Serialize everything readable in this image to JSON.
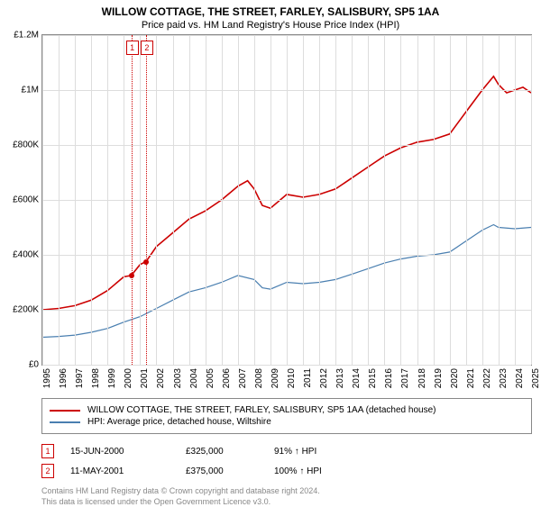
{
  "title": "WILLOW COTTAGE, THE STREET, FARLEY, SALISBURY, SP5 1AA",
  "subtitle": "Price paid vs. HM Land Registry's House Price Index (HPI)",
  "chart": {
    "type": "line",
    "background_color": "#ffffff",
    "grid_color": "#dddddd",
    "border_color": "#888888",
    "x": {
      "min": 1995,
      "max": 2025,
      "ticks": [
        1995,
        1996,
        1997,
        1998,
        1999,
        2000,
        2001,
        2002,
        2003,
        2004,
        2005,
        2006,
        2007,
        2008,
        2009,
        2010,
        2011,
        2012,
        2013,
        2014,
        2015,
        2016,
        2017,
        2018,
        2019,
        2020,
        2021,
        2022,
        2023,
        2024,
        2025
      ]
    },
    "y": {
      "min": 0,
      "max": 1200000,
      "ticks": [
        0,
        200000,
        400000,
        600000,
        800000,
        1000000,
        1200000
      ],
      "tick_labels": [
        "£0",
        "£200K",
        "£400K",
        "£600K",
        "£800K",
        "£1M",
        "£1.2M"
      ]
    },
    "series": [
      {
        "id": "willow",
        "label": "WILLOW COTTAGE, THE STREET, FARLEY, SALISBURY, SP5 1AA (detached house)",
        "color": "#cc0000",
        "width": 1.6,
        "points": [
          [
            1995,
            200000
          ],
          [
            1996,
            205000
          ],
          [
            1997,
            215000
          ],
          [
            1998,
            235000
          ],
          [
            1999,
            270000
          ],
          [
            2000,
            320000
          ],
          [
            2000.46,
            325000
          ],
          [
            2001,
            365000
          ],
          [
            2001.36,
            375000
          ],
          [
            2002,
            430000
          ],
          [
            2003,
            480000
          ],
          [
            2004,
            530000
          ],
          [
            2005,
            560000
          ],
          [
            2006,
            600000
          ],
          [
            2007,
            650000
          ],
          [
            2007.6,
            670000
          ],
          [
            2008,
            640000
          ],
          [
            2008.5,
            580000
          ],
          [
            2009,
            570000
          ],
          [
            2010,
            620000
          ],
          [
            2011,
            610000
          ],
          [
            2012,
            620000
          ],
          [
            2013,
            640000
          ],
          [
            2014,
            680000
          ],
          [
            2015,
            720000
          ],
          [
            2016,
            760000
          ],
          [
            2017,
            790000
          ],
          [
            2018,
            810000
          ],
          [
            2019,
            820000
          ],
          [
            2020,
            840000
          ],
          [
            2021,
            920000
          ],
          [
            2022,
            1000000
          ],
          [
            2022.7,
            1050000
          ],
          [
            2023,
            1020000
          ],
          [
            2023.5,
            990000
          ],
          [
            2024,
            1000000
          ],
          [
            2024.5,
            1010000
          ],
          [
            2025,
            990000
          ]
        ]
      },
      {
        "id": "hpi",
        "label": "HPI: Average price, detached house, Wiltshire",
        "color": "#4a7fb0",
        "width": 1.2,
        "points": [
          [
            1995,
            100000
          ],
          [
            1996,
            103000
          ],
          [
            1997,
            108000
          ],
          [
            1998,
            118000
          ],
          [
            1999,
            132000
          ],
          [
            2000,
            155000
          ],
          [
            2001,
            175000
          ],
          [
            2002,
            205000
          ],
          [
            2003,
            235000
          ],
          [
            2004,
            265000
          ],
          [
            2005,
            280000
          ],
          [
            2006,
            300000
          ],
          [
            2007,
            325000
          ],
          [
            2008,
            310000
          ],
          [
            2008.5,
            280000
          ],
          [
            2009,
            275000
          ],
          [
            2010,
            300000
          ],
          [
            2011,
            295000
          ],
          [
            2012,
            300000
          ],
          [
            2013,
            310000
          ],
          [
            2014,
            330000
          ],
          [
            2015,
            350000
          ],
          [
            2016,
            370000
          ],
          [
            2017,
            385000
          ],
          [
            2018,
            395000
          ],
          [
            2019,
            400000
          ],
          [
            2020,
            410000
          ],
          [
            2021,
            450000
          ],
          [
            2022,
            490000
          ],
          [
            2022.7,
            510000
          ],
          [
            2023,
            500000
          ],
          [
            2024,
            495000
          ],
          [
            2025,
            500000
          ]
        ]
      }
    ],
    "markers": [
      {
        "n": "1",
        "x": 2000.46,
        "y": 325000
      },
      {
        "n": "2",
        "x": 2001.36,
        "y": 375000
      }
    ]
  },
  "legend": [
    {
      "color": "#cc0000",
      "label": "WILLOW COTTAGE, THE STREET, FARLEY, SALISBURY, SP5 1AA (detached house)"
    },
    {
      "color": "#4a7fb0",
      "label": "HPI: Average price, detached house, Wiltshire"
    }
  ],
  "transactions": [
    {
      "n": "1",
      "date": "15-JUN-2000",
      "price": "£325,000",
      "hpi": "91% ↑ HPI"
    },
    {
      "n": "2",
      "date": "11-MAY-2001",
      "price": "£375,000",
      "hpi": "100% ↑ HPI"
    }
  ],
  "footer": {
    "line1": "Contains HM Land Registry data © Crown copyright and database right 2024.",
    "line2": "This data is licensed under the Open Government Licence v3.0."
  }
}
